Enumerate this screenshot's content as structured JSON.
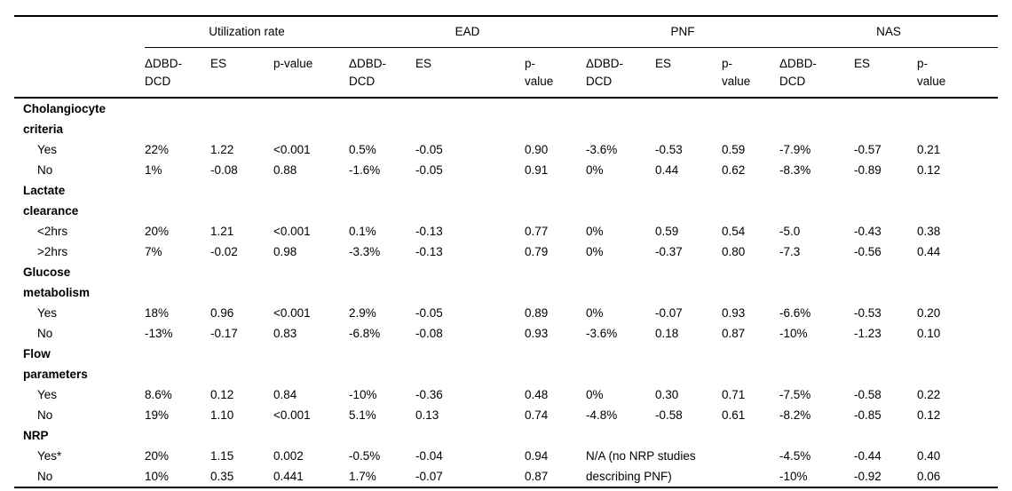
{
  "table": {
    "header": {
      "groups": [
        {
          "label": "Utilization rate"
        },
        {
          "label": "EAD"
        },
        {
          "label": "PNF"
        },
        {
          "label": "NAS"
        }
      ],
      "columns": [
        {
          "label": "ΔDBD-\nDCD"
        },
        {
          "label": "ES"
        },
        {
          "label": "p-value"
        },
        {
          "label": "ΔDBD-\nDCD"
        },
        {
          "label": "ES"
        },
        {
          "label": "p-\nvalue"
        },
        {
          "label": "ΔDBD-\nDCD"
        },
        {
          "label": "ES"
        },
        {
          "label": "p-\nvalue"
        },
        {
          "label": "ΔDBD-\nDCD"
        },
        {
          "label": "ES"
        },
        {
          "label": "p-\nvalue"
        }
      ]
    },
    "rows": [
      {
        "type": "section",
        "label": "Cholangiocyte\ncriteria"
      },
      {
        "type": "data",
        "label": "Yes",
        "values": [
          "22%",
          "1.22",
          "<0.001",
          "0.5%",
          "-0.05",
          "0.90",
          "-3.6%",
          "-0.53",
          "0.59",
          "-7.9%",
          "-0.57",
          "0.21"
        ]
      },
      {
        "type": "data",
        "label": "No",
        "values": [
          "1%",
          "-0.08",
          "0.88",
          "-1.6%",
          "-0.05",
          "0.91",
          "0%",
          "0.44",
          "0.62",
          "-8.3%",
          "-0.89",
          "0.12"
        ]
      },
      {
        "type": "section",
        "label": "Lactate\nclearance"
      },
      {
        "type": "data",
        "label": "<2hrs",
        "values": [
          "20%",
          "1.21",
          "<0.001",
          "0.1%",
          "-0.13",
          "0.77",
          "0%",
          "0.59",
          "0.54",
          "-5.0",
          "-0.43",
          "0.38"
        ]
      },
      {
        "type": "data",
        "label": ">2hrs",
        "values": [
          "7%",
          "-0.02",
          "0.98",
          "-3.3%",
          "-0.13",
          "0.79",
          "0%",
          "-0.37",
          "0.80",
          "-7.3",
          "-0.56",
          "0.44"
        ]
      },
      {
        "type": "section",
        "label": "Glucose\nmetabolism"
      },
      {
        "type": "data",
        "label": "Yes",
        "values": [
          "18%",
          "0.96",
          "<0.001",
          "2.9%",
          "-0.05",
          "0.89",
          "0%",
          "-0.07",
          "0.93",
          "-6.6%",
          "-0.53",
          "0.20"
        ]
      },
      {
        "type": "data",
        "label": "No",
        "values": [
          "-13%",
          "-0.17",
          "0.83",
          "-6.8%",
          "-0.08",
          "0.93",
          "-3.6%",
          "0.18",
          "0.87",
          "-10%",
          "-1.23",
          "0.10"
        ]
      },
      {
        "type": "section",
        "label": "Flow\nparameters"
      },
      {
        "type": "data",
        "label": "Yes",
        "values": [
          "8.6%",
          "0.12",
          "0.84",
          "-10%",
          "-0.36",
          "0.48",
          "0%",
          "0.30",
          "0.71",
          "-7.5%",
          "-0.58",
          "0.22"
        ]
      },
      {
        "type": "data",
        "label": "No",
        "values": [
          "19%",
          "1.10",
          "<0.001",
          "5.1%",
          "0.13",
          "0.74",
          "-4.8%",
          "-0.58",
          "0.61",
          "-8.2%",
          "-0.85",
          "0.12"
        ]
      },
      {
        "type": "section",
        "label": "NRP"
      },
      {
        "type": "data",
        "label": "Yes*",
        "values": [
          "20%",
          "1.15",
          "0.002",
          "-0.5%",
          "-0.04",
          "0.94"
        ],
        "note": "N/A (no NRP studies",
        "note_span": 3,
        "values2": [
          "-4.5%",
          "-0.44",
          "0.40"
        ]
      },
      {
        "type": "data",
        "label": "No",
        "values": [
          "10%",
          "0.35",
          "0.441",
          "1.7%",
          "-0.07",
          "0.87"
        ],
        "note": "describing PNF)",
        "note_span": 3,
        "values2": [
          "-10%",
          "-0.92",
          "0.06"
        ]
      }
    ]
  }
}
